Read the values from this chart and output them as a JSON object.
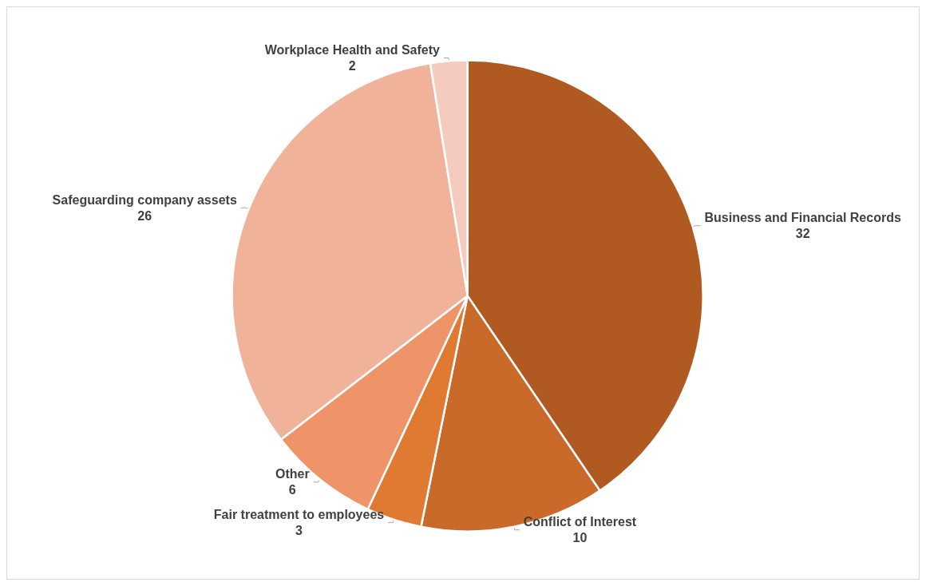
{
  "chart_data": {
    "type": "pie",
    "categories": [
      "Business and Financial Records",
      "Conflict of Interest",
      "Fair treatment to employees",
      "Other",
      "Safeguarding company assets",
      "Workplace Health and Safety"
    ],
    "values": [
      32,
      10,
      3,
      6,
      26,
      2
    ],
    "colors": [
      "#b05a22",
      "#c96a2b",
      "#e07a33",
      "#ee9468",
      "#f1b29a",
      "#f6cbbf"
    ],
    "data_labels": true,
    "legend": false
  }
}
